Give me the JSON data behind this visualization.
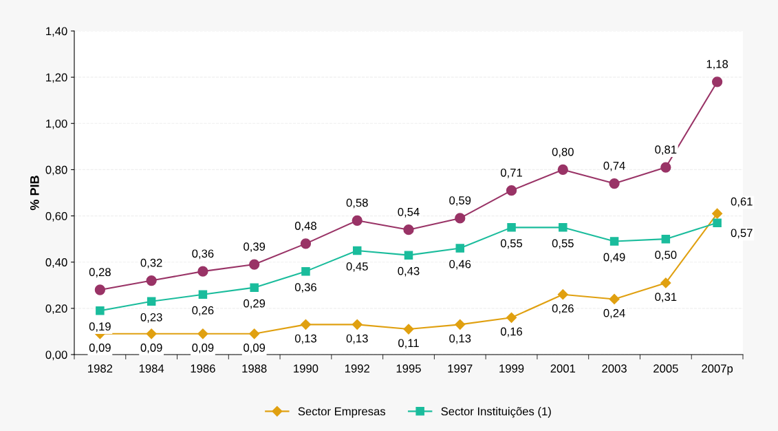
{
  "chart_data": {
    "type": "line",
    "ylabel": "% PIB",
    "categories": [
      "1982",
      "1984",
      "1986",
      "1988",
      "1990",
      "1992",
      "1995",
      "1997",
      "1999",
      "2001",
      "2003",
      "2005",
      "2007p"
    ],
    "series": [
      {
        "color": "#993366",
        "marker": "circle",
        "values": [
          0.28,
          0.32,
          0.36,
          0.39,
          0.48,
          0.58,
          0.54,
          0.59,
          0.71,
          0.8,
          0.74,
          0.81,
          1.18
        ],
        "value_labels": [
          "0,28",
          "0,32",
          "0,36",
          "0,39",
          "0,48",
          "0,58",
          "0,54",
          "0,59",
          "0,71",
          "0,80",
          "0,74",
          "0,81",
          "1,18"
        ]
      },
      {
        "name": "Sector Empresas",
        "color": "#e0a010",
        "marker": "diamond",
        "values": [
          0.09,
          0.09,
          0.09,
          0.09,
          0.13,
          0.13,
          0.11,
          0.13,
          0.16,
          0.26,
          0.24,
          0.31,
          0.61
        ],
        "value_labels": [
          "0,09",
          "0,09",
          "0,09",
          "0,09",
          "0,13",
          "0,13",
          "0,11",
          "0,13",
          "0,16",
          "0,26",
          "0,24",
          "0,31",
          "0,61"
        ]
      },
      {
        "name": "Sector Instituições (1)",
        "color": "#1abc9c",
        "marker": "square",
        "values": [
          0.19,
          0.23,
          0.26,
          0.29,
          0.36,
          0.45,
          0.43,
          0.46,
          0.55,
          0.55,
          0.49,
          0.5,
          0.57
        ],
        "value_labels": [
          "0,19",
          "0,23",
          "0,26",
          "0,29",
          "0,36",
          "0,45",
          "0,43",
          "0,46",
          "0,55",
          "0,55",
          "0,49",
          "0,50",
          "0,57"
        ]
      }
    ],
    "ylim": [
      0,
      1.4
    ],
    "yticks": [
      {
        "value": 0,
        "label": "0,00"
      },
      {
        "value": 0.2,
        "label": "0,20"
      },
      {
        "value": 0.4,
        "label": "0,40"
      },
      {
        "value": 0.6,
        "label": "0,60"
      },
      {
        "value": 0.8,
        "label": "0,80"
      },
      {
        "value": 1.0,
        "label": "1,00"
      },
      {
        "value": 1.2,
        "label": "1,20"
      },
      {
        "value": 1.4,
        "label": "1,40"
      }
    ],
    "grid": "y",
    "legend": "bottom"
  }
}
